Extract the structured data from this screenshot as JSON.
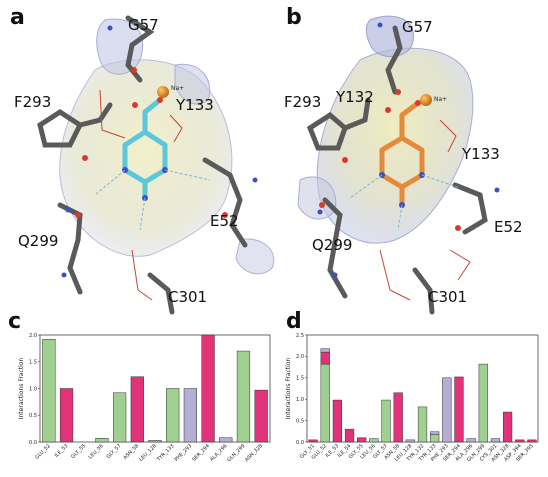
{
  "panels": {
    "a": {
      "letter": "a",
      "residues": [
        "G57",
        "F293",
        "Y133",
        "E52",
        "Q299",
        "C301"
      ],
      "ion": "Na+"
    },
    "b": {
      "letter": "b",
      "residues": [
        "G57",
        "F293",
        "Y132",
        "Y133",
        "E52",
        "Q299",
        "C301"
      ],
      "ion": "Na+"
    },
    "c": {
      "letter": "c"
    },
    "d": {
      "letter": "d"
    }
  },
  "colors": {
    "hbond": "#9fd08f",
    "ionic": "#e0337a",
    "hydrophobic": "#b3aed3",
    "water": "#b3aed3",
    "ligand_a": "#5ac8d8",
    "ligand_b": "#e58a3a"
  },
  "chart_data": [
    {
      "type": "bar",
      "panel": "c",
      "ylabel": "Interactions Fraction",
      "ylim": [
        0,
        2.0
      ],
      "yticks": [
        "0.0",
        "0.5",
        "1.0",
        "1.5",
        "2.0"
      ],
      "categories": [
        "GLU_52",
        "ILE_53",
        "GLY_55",
        "LEU_56",
        "GLY_57",
        "ASN_58",
        "LEU_128",
        "TYR_133",
        "PHE_293",
        "SER_294",
        "ALA_296",
        "GLN_299",
        "ASN_328"
      ],
      "bars": [
        {
          "category": "GLU_52",
          "stack": [
            {
              "kind": "hbond",
              "value": 1.92
            }
          ]
        },
        {
          "category": "ILE_53",
          "stack": [
            {
              "kind": "ionic",
              "value": 1.0
            }
          ]
        },
        {
          "category": "GLY_55",
          "stack": []
        },
        {
          "category": "LEU_56",
          "stack": [
            {
              "kind": "hbond",
              "value": 0.07
            }
          ]
        },
        {
          "category": "GLY_57",
          "stack": [
            {
              "kind": "hbond",
              "value": 0.92
            }
          ]
        },
        {
          "category": "ASN_58",
          "stack": [
            {
              "kind": "ionic",
              "value": 1.22
            }
          ]
        },
        {
          "category": "LEU_128",
          "stack": [
            {
              "kind": "hydrophobic",
              "value": 0.03
            }
          ]
        },
        {
          "category": "TYR_133",
          "stack": [
            {
              "kind": "hbond",
              "value": 1.0
            }
          ]
        },
        {
          "category": "PHE_293",
          "stack": [
            {
              "kind": "hydrophobic",
              "value": 1.0
            }
          ]
        },
        {
          "category": "SER_294",
          "stack": [
            {
              "kind": "ionic",
              "value": 2.0
            }
          ]
        },
        {
          "category": "ALA_296",
          "stack": [
            {
              "kind": "hydrophobic",
              "value": 0.08
            }
          ]
        },
        {
          "category": "GLN_299",
          "stack": [
            {
              "kind": "hbond",
              "value": 1.7
            }
          ]
        },
        {
          "category": "ASN_328",
          "stack": [
            {
              "kind": "ionic",
              "value": 0.97
            }
          ]
        }
      ]
    },
    {
      "type": "bar",
      "panel": "d",
      "ylabel": "Interactions Fraction",
      "ylim": [
        0,
        2.5
      ],
      "yticks": [
        "0.0",
        "0.5",
        "1.0",
        "1.5",
        "2.0",
        "2.5"
      ],
      "categories": [
        "GLY_51",
        "GLU_52",
        "ILE_53",
        "ILE_54",
        "GLY_55",
        "LEU_56",
        "GLY_57",
        "ASN_58",
        "LEU_128",
        "TYR_132",
        "TYR_133",
        "PHE_293",
        "SER_294",
        "ALA_296",
        "GLN_299",
        "CYS_301",
        "ASN_328",
        "ASP_394",
        "SER_395"
      ],
      "bars": [
        {
          "category": "GLY_51",
          "stack": [
            {
              "kind": "ionic",
              "value": 0.05
            }
          ]
        },
        {
          "category": "GLU_52",
          "stack": [
            {
              "kind": "hbond",
              "value": 1.82
            },
            {
              "kind": "ionic",
              "value": 0.28
            },
            {
              "kind": "hydrophobic",
              "value": 0.08
            }
          ]
        },
        {
          "category": "ILE_53",
          "stack": [
            {
              "kind": "ionic",
              "value": 0.98
            }
          ]
        },
        {
          "category": "ILE_54",
          "stack": [
            {
              "kind": "ionic",
              "value": 0.3
            }
          ]
        },
        {
          "category": "GLY_55",
          "stack": [
            {
              "kind": "ionic",
              "value": 0.1
            }
          ]
        },
        {
          "category": "LEU_56",
          "stack": [
            {
              "kind": "hbond",
              "value": 0.08
            }
          ]
        },
        {
          "category": "GLY_57",
          "stack": [
            {
              "kind": "hbond",
              "value": 0.98
            }
          ]
        },
        {
          "category": "ASN_58",
          "stack": [
            {
              "kind": "ionic",
              "value": 1.15
            }
          ]
        },
        {
          "category": "LEU_128",
          "stack": [
            {
              "kind": "hydrophobic",
              "value": 0.05
            }
          ]
        },
        {
          "category": "TYR_132",
          "stack": [
            {
              "kind": "hbond",
              "value": 0.82
            }
          ]
        },
        {
          "category": "TYR_133",
          "stack": [
            {
              "kind": "hbond",
              "value": 0.18
            },
            {
              "kind": "hydrophobic",
              "value": 0.06
            }
          ]
        },
        {
          "category": "PHE_293",
          "stack": [
            {
              "kind": "hydrophobic",
              "value": 1.5
            }
          ]
        },
        {
          "category": "SER_294",
          "stack": [
            {
              "kind": "ionic",
              "value": 1.52
            }
          ]
        },
        {
          "category": "ALA_296",
          "stack": [
            {
              "kind": "hydrophobic",
              "value": 0.08
            }
          ]
        },
        {
          "category": "GLN_299",
          "stack": [
            {
              "kind": "hbond",
              "value": 1.82
            }
          ]
        },
        {
          "category": "CYS_301",
          "stack": [
            {
              "kind": "hydrophobic",
              "value": 0.08
            }
          ]
        },
        {
          "category": "ASN_328",
          "stack": [
            {
              "kind": "ionic",
              "value": 0.7
            }
          ]
        },
        {
          "category": "ASP_394",
          "stack": [
            {
              "kind": "ionic",
              "value": 0.05
            }
          ]
        },
        {
          "category": "SER_395",
          "stack": [
            {
              "kind": "ionic",
              "value": 0.05
            }
          ]
        }
      ]
    }
  ]
}
